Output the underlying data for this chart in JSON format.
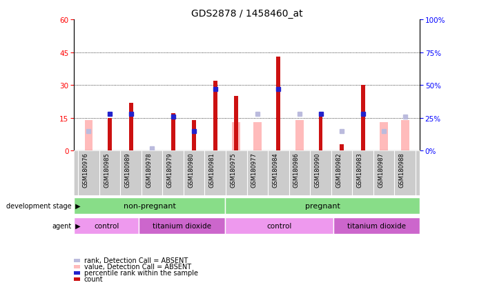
{
  "title": "GDS2878 / 1458460_at",
  "samples": [
    "GSM180976",
    "GSM180985",
    "GSM180989",
    "GSM180978",
    "GSM180979",
    "GSM180980",
    "GSM180981",
    "GSM180975",
    "GSM180977",
    "GSM180984",
    "GSM180986",
    "GSM180990",
    "GSM180982",
    "GSM180983",
    "GSM180987",
    "GSM180988"
  ],
  "count": [
    null,
    15,
    22,
    null,
    17,
    14,
    32,
    25,
    null,
    43,
    null,
    16,
    3,
    30,
    null,
    null
  ],
  "percentile_rank": [
    null,
    28,
    28,
    null,
    26,
    15,
    47,
    null,
    null,
    47,
    null,
    28,
    null,
    28,
    null,
    null
  ],
  "value_absent": [
    14,
    null,
    null,
    null,
    null,
    null,
    null,
    13,
    13,
    null,
    14,
    null,
    null,
    null,
    13,
    14
  ],
  "rank_absent": [
    15,
    null,
    null,
    2,
    null,
    null,
    null,
    null,
    28,
    null,
    28,
    null,
    15,
    null,
    15,
    26
  ],
  "ylim_left": [
    0,
    60
  ],
  "ylim_right": [
    0,
    100
  ],
  "yticks_left": [
    0,
    15,
    30,
    45,
    60
  ],
  "yticks_right": [
    0,
    25,
    50,
    75,
    100
  ],
  "colors": {
    "count": "#cc1111",
    "percentile_rank": "#2222cc",
    "value_absent": "#ffbbbb",
    "rank_absent": "#bbbbdd",
    "background_plot": "#ffffff",
    "background_label": "#cccccc",
    "dev_stage_color": "#88dd88",
    "agent_control_color": "#ee99ee",
    "agent_tio2_color": "#cc66cc"
  },
  "dev_stage": [
    {
      "label": "non-pregnant",
      "start": 0,
      "end": 7
    },
    {
      "label": "pregnant",
      "start": 7,
      "end": 16
    }
  ],
  "agent_groups": [
    {
      "label": "control",
      "start": 0,
      "end": 3
    },
    {
      "label": "titanium dioxide",
      "start": 3,
      "end": 7
    },
    {
      "label": "control",
      "start": 7,
      "end": 12
    },
    {
      "label": "titanium dioxide",
      "start": 12,
      "end": 16
    }
  ],
  "legend": [
    {
      "label": "count",
      "color": "#cc1111"
    },
    {
      "label": "percentile rank within the sample",
      "color": "#2222cc"
    },
    {
      "label": "value, Detection Call = ABSENT",
      "color": "#ffbbbb"
    },
    {
      "label": "rank, Detection Call = ABSENT",
      "color": "#bbbbdd"
    }
  ]
}
